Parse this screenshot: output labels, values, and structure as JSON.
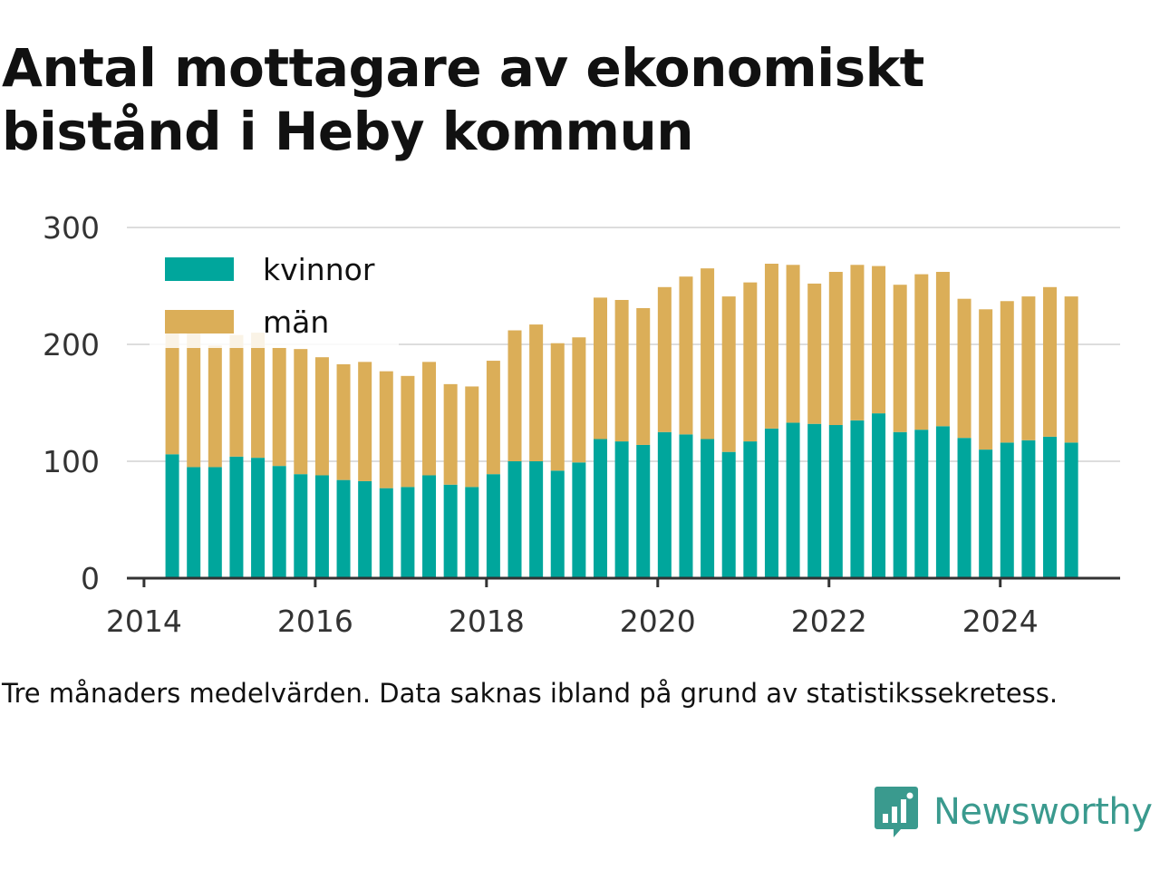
{
  "title": "Antal mottagare av ekonomiskt bistånd i Heby kommun",
  "note": "Tre månaders medelvärden. Data saknas ibland på grund av statistikssekretess.",
  "brand": {
    "name": "Newsworthy",
    "icon": "newsworthy-logo-icon",
    "color": "#3a9a8e"
  },
  "chart_data": {
    "type": "bar",
    "stacked": true,
    "x_axis": {
      "min": 2013.8,
      "max": 2025.4,
      "ticks": [
        2014,
        2016,
        2018,
        2020,
        2022,
        2024
      ]
    },
    "y_axis": {
      "min": 0,
      "max": 300,
      "ticks": [
        0,
        100,
        200,
        300
      ]
    },
    "grid": true,
    "legend": "top-left",
    "x": [
      2014.33,
      2014.58,
      2014.83,
      2015.08,
      2015.33,
      2015.58,
      2015.83,
      2016.08,
      2016.33,
      2016.58,
      2016.83,
      2017.08,
      2017.33,
      2017.58,
      2017.83,
      2018.08,
      2018.33,
      2018.58,
      2018.83,
      2019.08,
      2019.33,
      2019.58,
      2019.83,
      2020.08,
      2020.33,
      2020.58,
      2020.83,
      2021.08,
      2021.33,
      2021.58,
      2021.83,
      2022.08,
      2022.33,
      2022.58,
      2022.83,
      2023.08,
      2023.33,
      2023.58,
      2023.83,
      2024.08,
      2024.33,
      2024.58,
      2024.83
    ],
    "series": [
      {
        "name": "kvinnor",
        "color": "#00a69c",
        "values": [
          106,
          95,
          95,
          104,
          103,
          96,
          89,
          88,
          84,
          83,
          77,
          78,
          88,
          80,
          78,
          89,
          100,
          100,
          92,
          99,
          119,
          117,
          114,
          125,
          123,
          119,
          108,
          117,
          128,
          133,
          132,
          131,
          135,
          141,
          125,
          127,
          130,
          120,
          110,
          116,
          118,
          121,
          116
        ]
      },
      {
        "name": "män",
        "color": "#dbae58",
        "values": [
          104,
          115,
          104,
          104,
          107,
          101,
          107,
          101,
          99,
          102,
          100,
          95,
          97,
          86,
          86,
          97,
          112,
          117,
          109,
          107,
          121,
          121,
          117,
          124,
          135,
          146,
          133,
          136,
          141,
          135,
          120,
          131,
          133,
          126,
          126,
          133,
          132,
          119,
          120,
          121,
          123,
          128,
          125
        ]
      }
    ]
  }
}
